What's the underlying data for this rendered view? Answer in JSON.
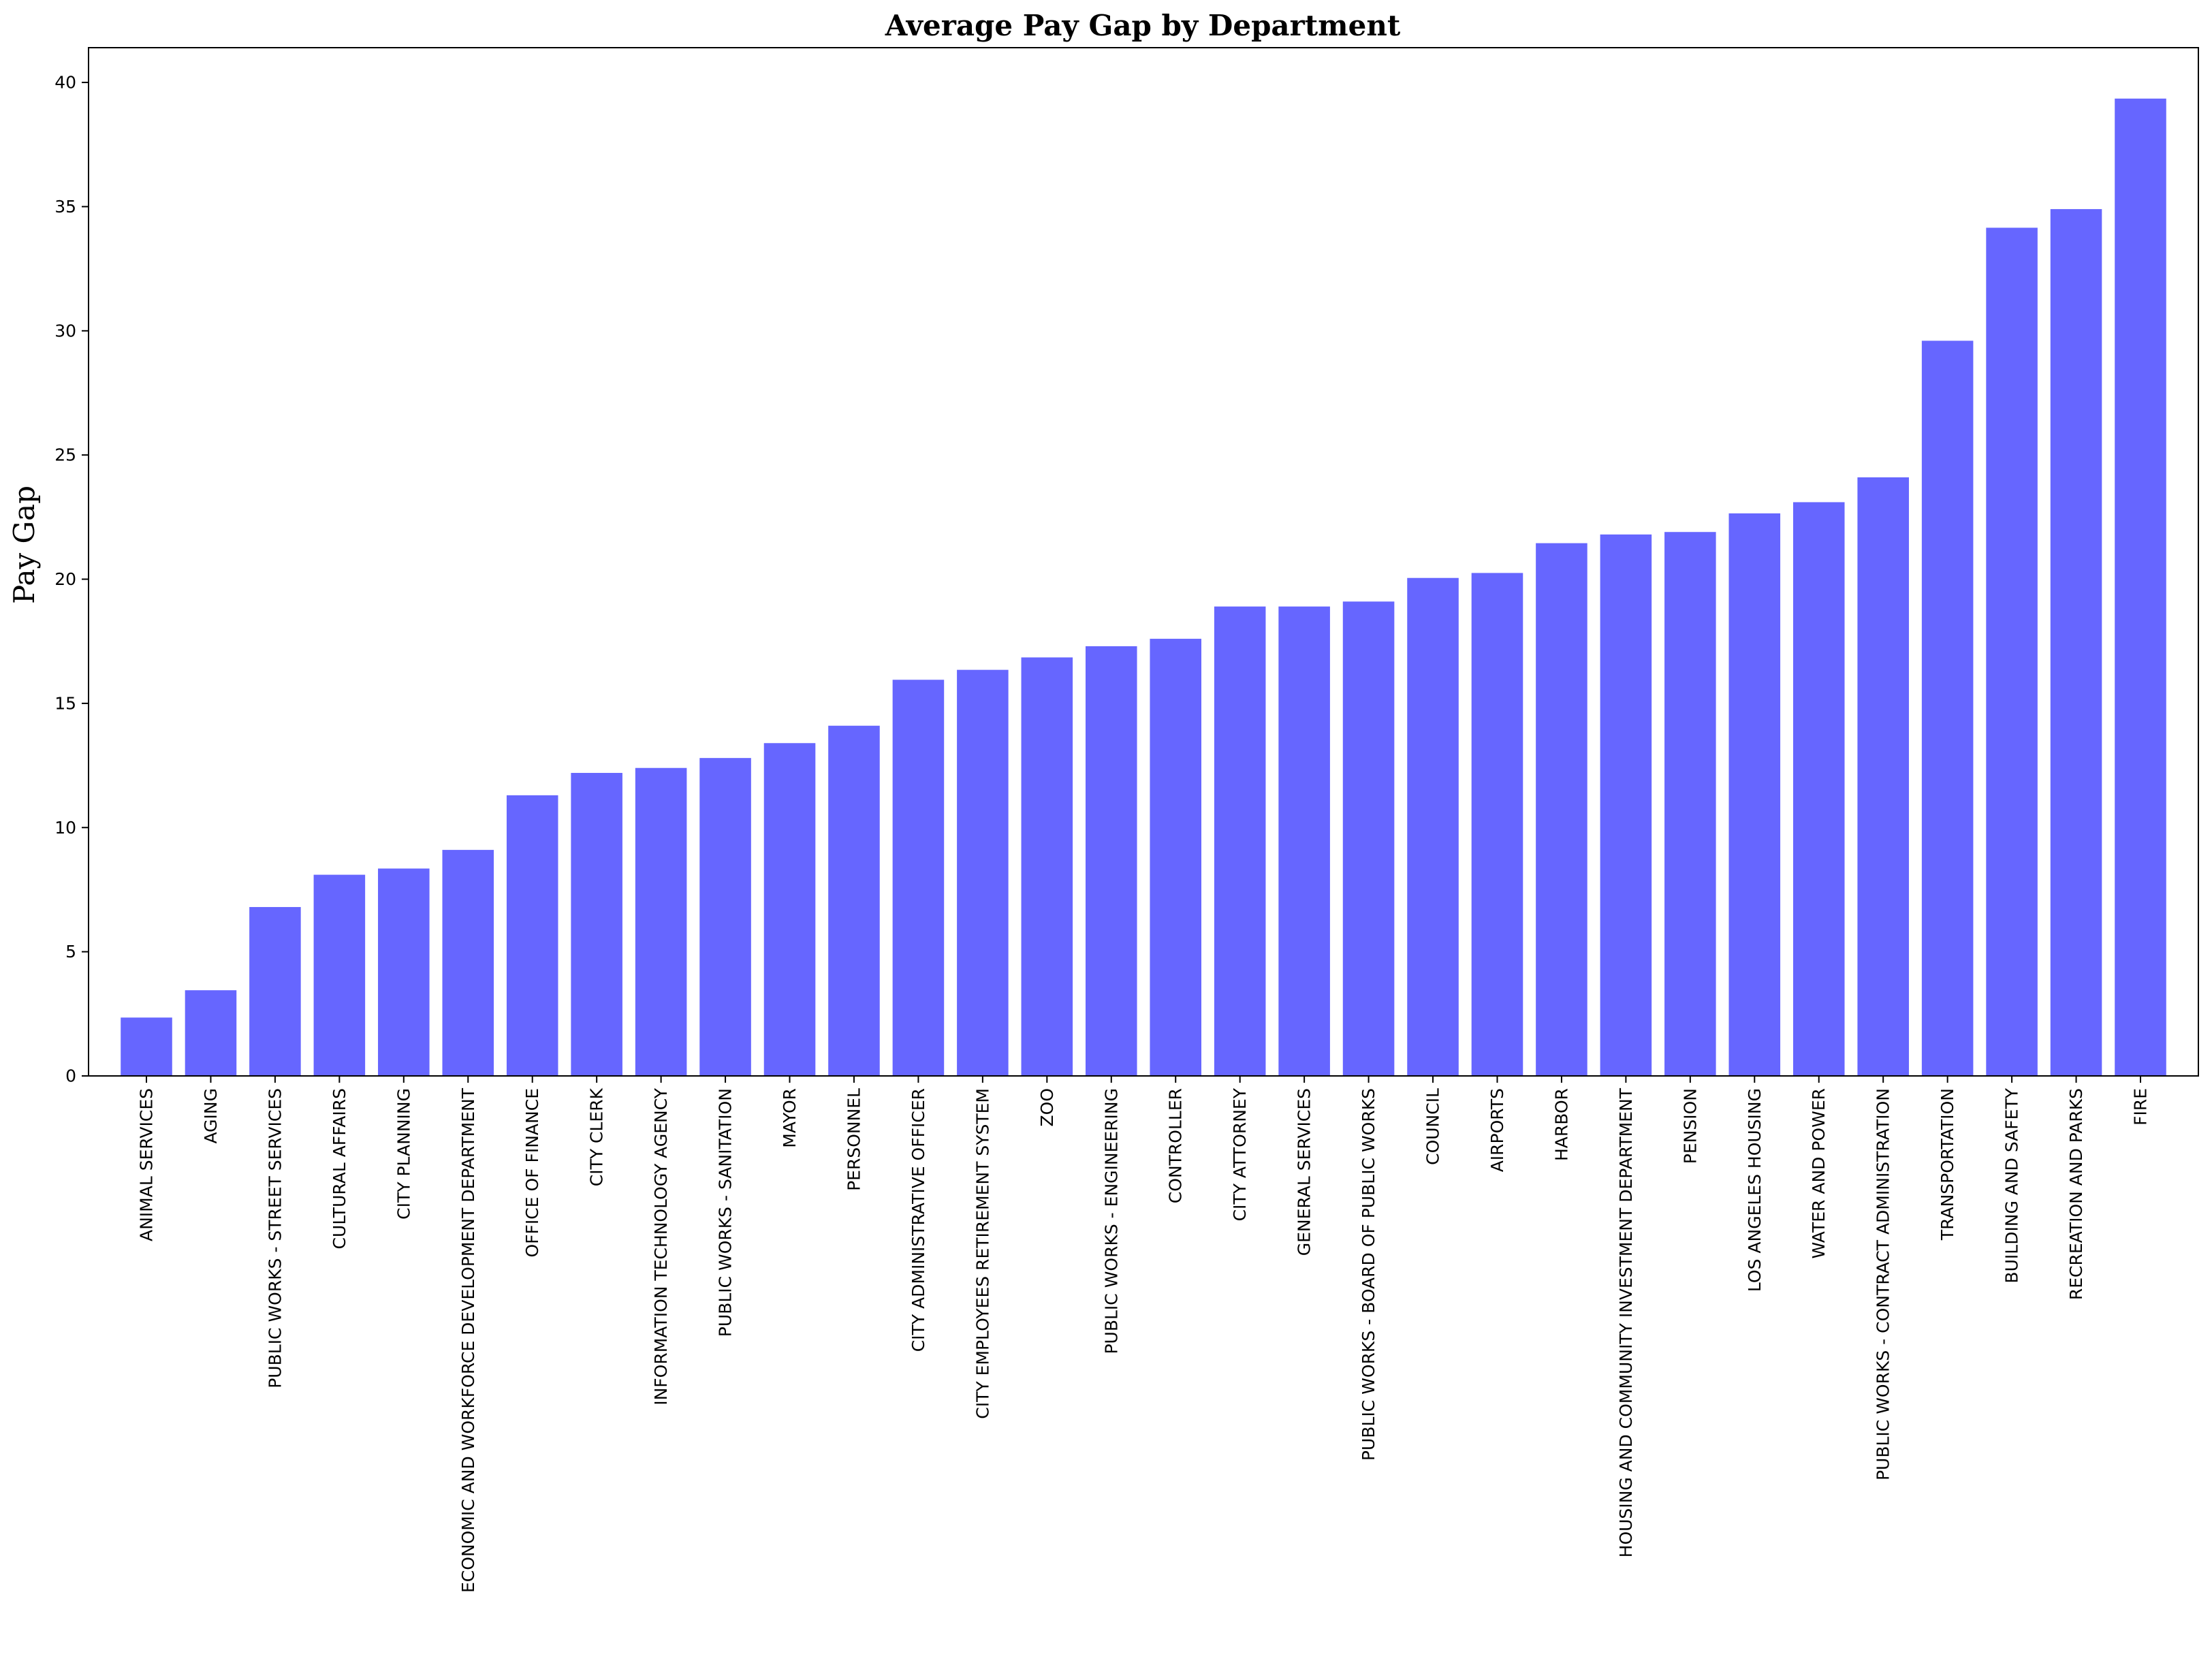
{
  "chart_data": {
    "type": "bar",
    "title": "Average Pay Gap by Department",
    "xlabel": "",
    "ylabel": "Pay Gap",
    "ylim": [
      0,
      41.4
    ],
    "yticks": [
      0,
      5,
      10,
      15,
      20,
      25,
      30,
      35,
      40
    ],
    "grid": false,
    "bar_color": "#6666ff",
    "categories": [
      "ANIMAL SERVICES",
      "AGING",
      "PUBLIC WORKS - STREET SERVICES",
      "CULTURAL AFFAIRS",
      "CITY PLANNING",
      "ECONOMIC AND WORKFORCE DEVELOPMENT DEPARTMENT",
      "OFFICE OF FINANCE",
      "CITY CLERK",
      "INFORMATION TECHNOLOGY AGENCY",
      "PUBLIC WORKS - SANITATION",
      "MAYOR",
      "PERSONNEL",
      "CITY ADMINISTRATIVE OFFICER",
      "CITY EMPLOYEES RETIREMENT SYSTEM",
      "ZOO",
      "PUBLIC WORKS - ENGINEERING",
      "CONTROLLER",
      "CITY ATTORNEY",
      "GENERAL SERVICES",
      "PUBLIC WORKS - BOARD OF PUBLIC WORKS",
      "COUNCIL",
      "AIRPORTS",
      "HARBOR",
      "HOUSING AND COMMUNITY INVESTMENT DEPARTMENT",
      "PENSION",
      "LOS ANGELES HOUSING",
      "WATER AND POWER",
      "PUBLIC WORKS - CONTRACT ADMINISTRATION",
      "TRANSPORTATION",
      "BUILDING AND SAFETY",
      "RECREATION AND PARKS",
      "FIRE"
    ],
    "values": [
      2.35,
      3.45,
      6.8,
      8.1,
      8.35,
      9.1,
      11.3,
      12.2,
      12.4,
      12.8,
      13.4,
      14.1,
      15.95,
      16.35,
      16.85,
      17.3,
      17.6,
      18.9,
      18.9,
      19.1,
      20.05,
      20.25,
      21.45,
      21.8,
      21.9,
      22.65,
      23.1,
      24.1,
      29.6,
      34.15,
      34.9,
      39.35
    ]
  }
}
